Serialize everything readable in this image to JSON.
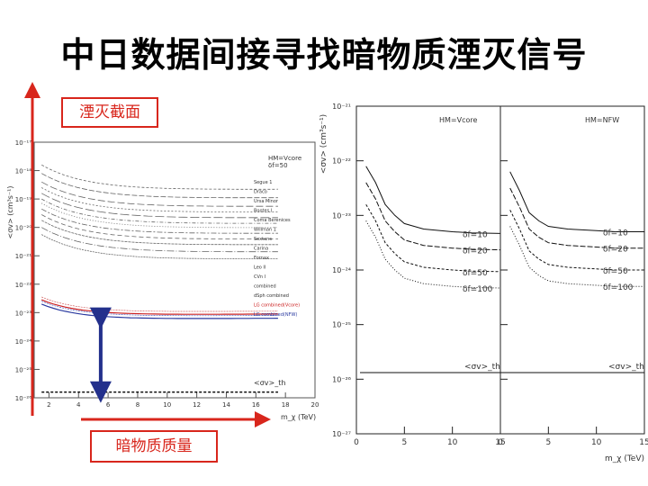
{
  "slide": {
    "title": "中日数据间接寻找暗物质湮灭信号",
    "annotation_cross_section": "湮灭截面",
    "annotation_dm_mass": "暗物质质量"
  },
  "chart_data": [
    {
      "type": "line",
      "panel": "left",
      "ylabel": "<σv> (cm³s⁻¹)",
      "xlabel": "m_χ (TeV)",
      "xlim": [
        1,
        20
      ],
      "ylim_exp": [
        -26,
        -17
      ],
      "x_ticks": [
        "2",
        "4",
        "6",
        "8",
        "10",
        "12",
        "14",
        "16",
        "18",
        "20"
      ],
      "y_ticks": [
        "10⁻¹⁷",
        "10⁻¹⁸",
        "10⁻¹⁹",
        "10⁻²⁰",
        "10⁻²¹",
        "10⁻²²",
        "10⁻²³",
        "10⁻²⁴",
        "10⁻²⁵",
        "10⁻²⁶"
      ],
      "legend_header": [
        "HM=Vcore",
        "δf=50"
      ],
      "legend": [
        "Segue 1",
        "Draco",
        "Ursa Minor",
        "Bootes I",
        "Coma Berenices",
        "Willman 1",
        "Sextans",
        "Carina",
        "Fornax",
        "Leo II",
        "CVn I",
        "combined",
        "dSph combined",
        "LG combined(Vcore)",
        "LG combined(NFW)"
      ],
      "unitarity_label": "<σv>_th",
      "arrow": {
        "x": 5.5,
        "y_bottom_exp": -25.8,
        "y_top_exp": -23.2
      }
    },
    {
      "type": "line",
      "panel": "right",
      "ylabel": "<σv> (cm³s⁻¹)",
      "xlabel": "m_χ (TeV)",
      "xlim": [
        0,
        15
      ],
      "ylim_exp": [
        -27,
        -21
      ],
      "x_ticks": [
        "0",
        "5",
        "10",
        "15"
      ],
      "y_ticks": [
        "10⁻²¹",
        "10⁻²²",
        "10⁻²³",
        "10⁻²⁴",
        "10⁻²⁵",
        "10⁻²⁶",
        "10⁻²⁷"
      ],
      "subpanels": [
        {
          "label": "HM=Vcore",
          "series": [
            {
              "name": "δf=10",
              "x": [
                1,
                2,
                3,
                4,
                5,
                7,
                10,
                12,
                15
              ],
              "log_y": [
                -22.1,
                -22.4,
                -22.8,
                -23.0,
                -23.15,
                -23.25,
                -23.3,
                -23.32,
                -23.33
              ]
            },
            {
              "name": "δf=20",
              "x": [
                1,
                2,
                3,
                4,
                5,
                7,
                10,
                12,
                15
              ],
              "log_y": [
                -22.4,
                -22.7,
                -23.1,
                -23.3,
                -23.45,
                -23.55,
                -23.6,
                -23.62,
                -23.63
              ]
            },
            {
              "name": "δf=50",
              "x": [
                1,
                2,
                3,
                4,
                5,
                7,
                10,
                12,
                15
              ],
              "log_y": [
                -22.8,
                -23.1,
                -23.5,
                -23.7,
                -23.85,
                -23.95,
                -24.0,
                -24.02,
                -24.03
              ]
            },
            {
              "name": "δf=100",
              "x": [
                1,
                2,
                3,
                4,
                5,
                7,
                10,
                12,
                15
              ],
              "log_y": [
                -23.1,
                -23.4,
                -23.8,
                -24.0,
                -24.15,
                -24.25,
                -24.3,
                -24.32,
                -24.33
              ]
            }
          ],
          "threshold_label": "<σv>_th",
          "threshold_log_y": -25.88
        },
        {
          "label": "HM=NFW",
          "series": [
            {
              "name": "δf=10",
              "x": [
                1,
                2,
                3,
                4,
                5,
                7,
                10,
                12,
                15
              ],
              "log_y": [
                -22.2,
                -22.55,
                -22.95,
                -23.1,
                -23.2,
                -23.25,
                -23.28,
                -23.3,
                -23.3
              ]
            },
            {
              "name": "δf=20",
              "x": [
                1,
                2,
                3,
                4,
                5,
                7,
                10,
                12,
                15
              ],
              "log_y": [
                -22.5,
                -22.85,
                -23.25,
                -23.4,
                -23.5,
                -23.55,
                -23.58,
                -23.6,
                -23.6
              ]
            },
            {
              "name": "δf=50",
              "x": [
                1,
                2,
                3,
                4,
                5,
                7,
                10,
                12,
                15
              ],
              "log_y": [
                -22.9,
                -23.25,
                -23.65,
                -23.8,
                -23.9,
                -23.95,
                -23.98,
                -24.0,
                -24.0
              ]
            },
            {
              "name": "δf=100",
              "x": [
                1,
                2,
                3,
                4,
                5,
                7,
                10,
                12,
                15
              ],
              "log_y": [
                -23.2,
                -23.55,
                -23.95,
                -24.1,
                -24.2,
                -24.25,
                -24.28,
                -24.3,
                -24.3
              ]
            }
          ],
          "threshold_label": "<σv>_th",
          "threshold_log_y": -25.88
        }
      ]
    }
  ],
  "colors": {
    "annotation": "#d8261c",
    "arrow": "#23308c",
    "red_curve": "#cc2222",
    "blue_curve": "#2a3aa0"
  }
}
